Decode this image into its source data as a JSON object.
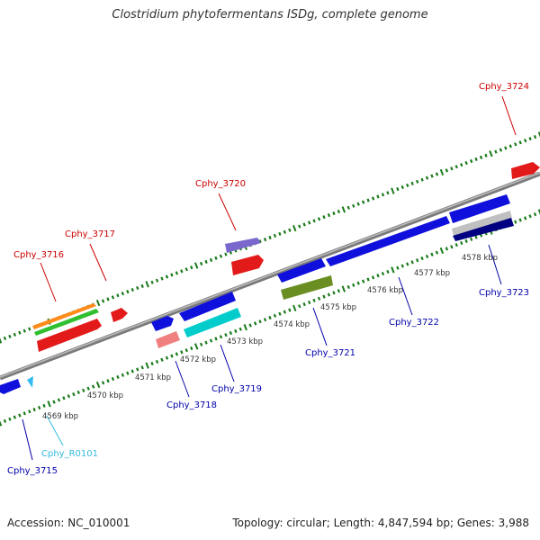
{
  "title": "Clostridium phytofermentans ISDg, complete genome",
  "footer": {
    "accession": "Accession: NC_010001",
    "summary": "Topology: circular; Length: 4,847,594 bp; Genes: 3,988"
  },
  "colors": {
    "forward_gene_label": "#cc0000",
    "reverse_gene_label": "#0000aa",
    "rna_label": "#33bbdd",
    "backbone": "#888888",
    "tick": "#1a7a1a"
  },
  "kbp_labels": [
    "4569 kbp",
    "4570 kbp",
    "4571 kbp",
    "4572 kbp",
    "4573 kbp",
    "4574 kbp",
    "4575 kbp",
    "4576 kbp",
    "4577 kbp",
    "4578 kbp"
  ],
  "gene_labels": [
    {
      "text": "Cphy_3716",
      "strand": "forward"
    },
    {
      "text": "Cphy_3717",
      "strand": "forward"
    },
    {
      "text": "Cphy_3720",
      "strand": "forward"
    },
    {
      "text": "Cphy_3724",
      "strand": "forward"
    },
    {
      "text": "Cphy_3715",
      "strand": "reverse"
    },
    {
      "text": "Cphy_R0101",
      "strand": "rna"
    },
    {
      "text": "Cphy_3718",
      "strand": "reverse"
    },
    {
      "text": "Cphy_3719",
      "strand": "reverse"
    },
    {
      "text": "Cphy_3721",
      "strand": "reverse"
    },
    {
      "text": "Cphy_3722",
      "strand": "reverse"
    },
    {
      "text": "Cphy_3723",
      "strand": "reverse"
    }
  ]
}
